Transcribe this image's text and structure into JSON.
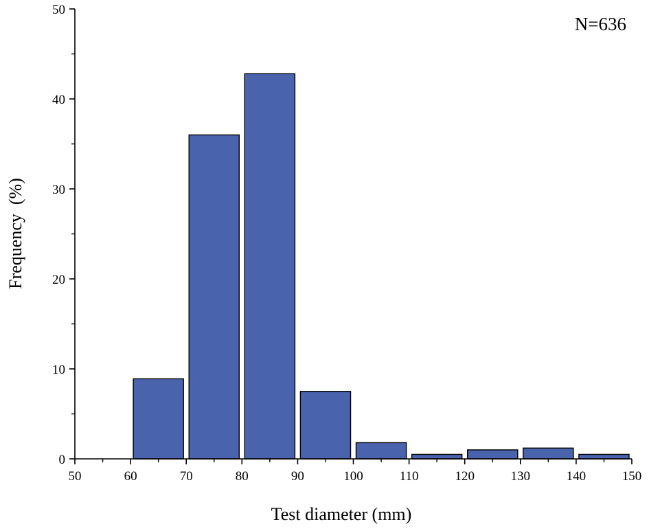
{
  "chart_data": {
    "type": "bar",
    "x_bins": [
      [
        60,
        70
      ],
      [
        70,
        80
      ],
      [
        80,
        90
      ],
      [
        90,
        100
      ],
      [
        100,
        110
      ],
      [
        110,
        120
      ],
      [
        120,
        130
      ],
      [
        130,
        140
      ],
      [
        140,
        150
      ]
    ],
    "values": [
      8.9,
      36.0,
      42.8,
      7.5,
      1.8,
      0.5,
      1.0,
      1.2,
      0.5
    ],
    "title": "",
    "xlabel": "Test diameter (mm)",
    "ylabel": "Frequency  (%)",
    "xlim": [
      50,
      150
    ],
    "ylim": [
      0,
      50
    ],
    "xticks": [
      50,
      60,
      70,
      80,
      90,
      100,
      110,
      120,
      130,
      140,
      150
    ],
    "yticks": [
      0,
      10,
      20,
      30,
      40,
      50
    ],
    "annotation": "N=636",
    "bar_color": "#4a63ad",
    "grid": false
  }
}
